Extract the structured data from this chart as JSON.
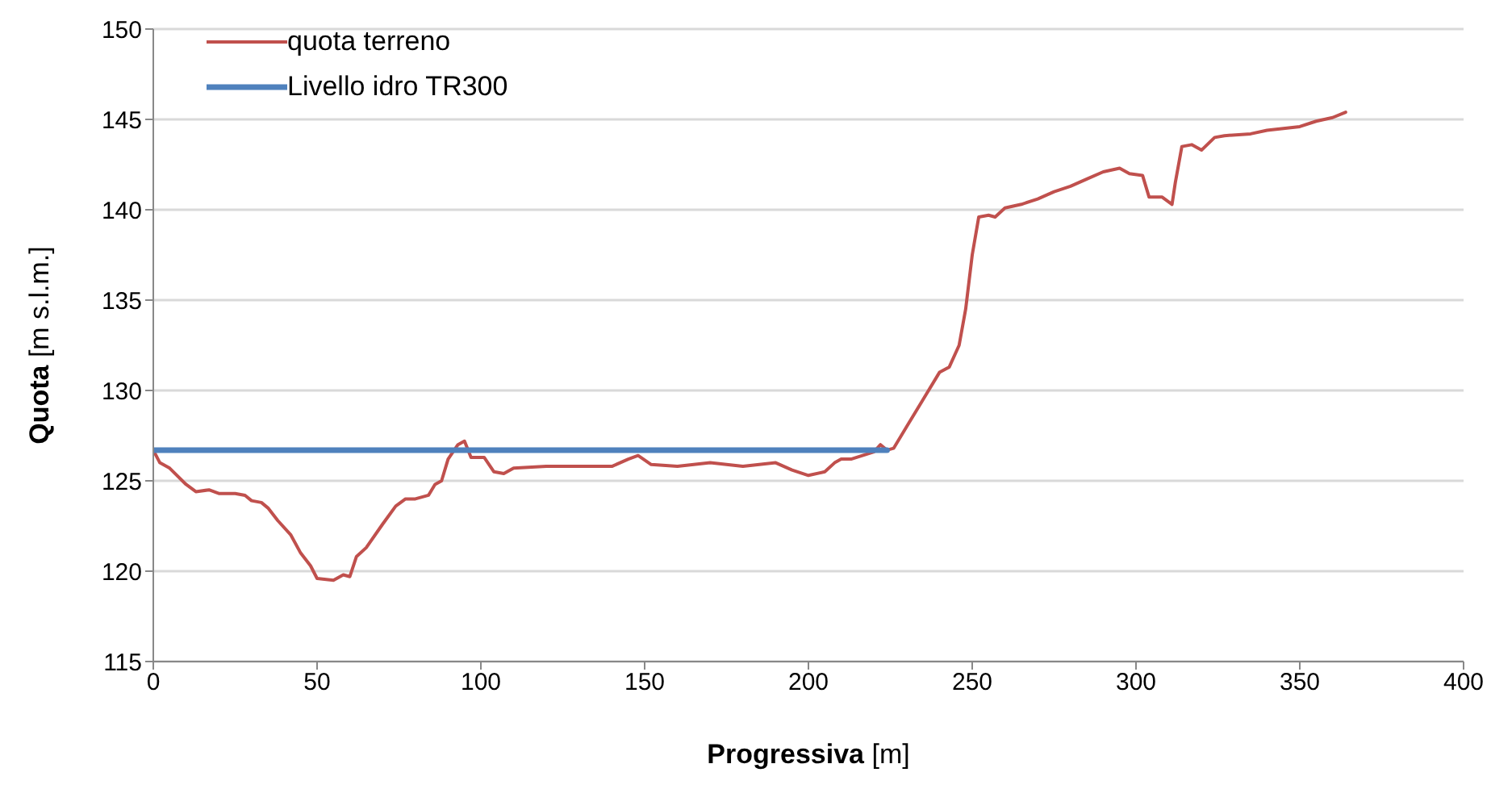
{
  "chart_data": {
    "type": "line",
    "xlabel": "Progressiva [m]",
    "ylabel": "Quota [m s.l.m.]",
    "xlim": [
      0,
      400
    ],
    "xticks": [
      0,
      50,
      100,
      150,
      200,
      250,
      300,
      350,
      400
    ],
    "ylim": [
      115,
      150
    ],
    "yticks": [
      115,
      120,
      125,
      130,
      135,
      140,
      145,
      150
    ],
    "grid": "y",
    "legend": "top left",
    "marker": "none",
    "line_style": "solid",
    "series": [
      {
        "name": "quota terreno",
        "color": "#c0504d",
        "x": [
          0,
          2,
          5,
          10,
          13,
          17,
          20,
          25,
          28,
          30,
          33,
          35,
          38,
          42,
          45,
          48,
          50,
          55,
          58,
          60,
          62,
          65,
          70,
          74,
          77,
          80,
          84,
          86,
          88,
          90,
          93,
          95,
          97,
          101,
          104,
          107,
          110,
          120,
          130,
          140,
          145,
          148,
          152,
          160,
          170,
          180,
          190,
          195,
          200,
          205,
          208,
          210,
          213,
          220,
          222,
          224,
          226,
          230,
          235,
          240,
          243,
          246,
          248,
          250,
          252,
          255,
          257,
          260,
          265,
          270,
          275,
          280,
          285,
          290,
          295,
          298,
          302,
          304,
          308,
          311,
          312,
          314,
          317,
          320,
          324,
          327,
          335,
          340,
          350,
          355,
          360,
          364
        ],
        "values": [
          126.7,
          126.0,
          125.7,
          124.8,
          124.4,
          124.5,
          124.3,
          124.3,
          124.2,
          123.9,
          123.8,
          123.5,
          122.8,
          122.0,
          121.0,
          120.3,
          119.6,
          119.5,
          119.8,
          119.7,
          120.8,
          121.3,
          122.6,
          123.6,
          124.0,
          124.0,
          124.2,
          124.8,
          125.0,
          126.2,
          127.0,
          127.2,
          126.3,
          126.3,
          125.5,
          125.4,
          125.7,
          125.8,
          125.8,
          125.8,
          126.2,
          126.4,
          125.9,
          125.8,
          126.0,
          125.8,
          126.0,
          125.6,
          125.3,
          125.5,
          126.0,
          126.2,
          126.2,
          126.6,
          127.0,
          126.7,
          126.8,
          128.0,
          129.5,
          131.0,
          131.3,
          132.5,
          134.5,
          137.5,
          139.6,
          139.7,
          139.6,
          140.1,
          140.3,
          140.6,
          141.0,
          141.3,
          141.7,
          142.1,
          142.3,
          142.0,
          141.9,
          140.7,
          140.7,
          140.3,
          141.5,
          143.5,
          143.6,
          143.3,
          144.0,
          144.1,
          144.2,
          144.4,
          144.6,
          144.9,
          145.1,
          145.4
        ]
      },
      {
        "name": "Livello idro TR300",
        "color": "#4f81bd",
        "x": [
          0,
          224
        ],
        "values": [
          126.7,
          126.7
        ]
      }
    ]
  }
}
